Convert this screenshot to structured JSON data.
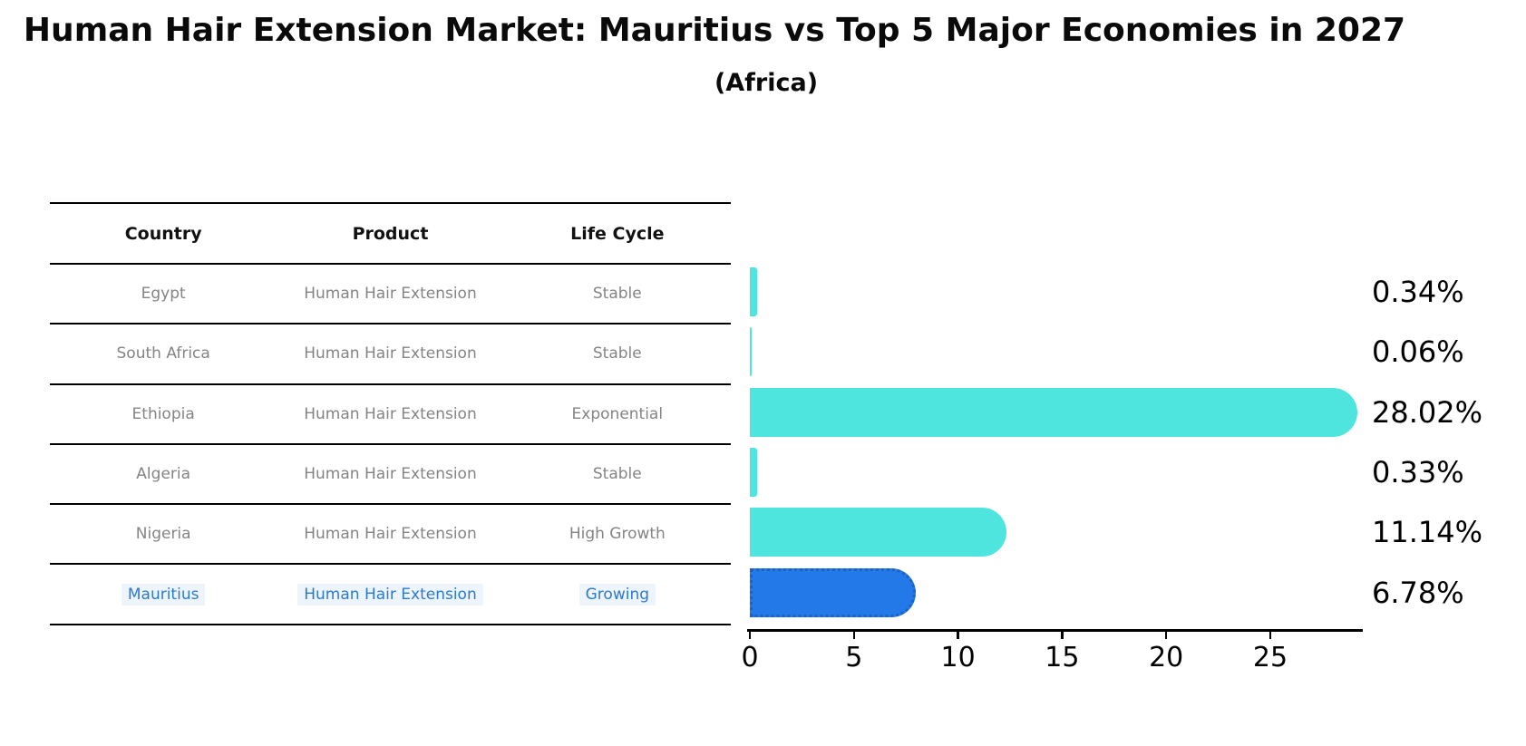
{
  "page": {
    "title": "Human Hair Extension Market: Mauritius vs Top 5 Major Economies in 2027",
    "subtitle": "(Africa)"
  },
  "table": {
    "headers": [
      "Country",
      "Product",
      "Life Cycle"
    ]
  },
  "rows": [
    {
      "country": "Egypt",
      "product": "Human Hair Extension",
      "life_cycle": "Stable",
      "value": 0.34,
      "value_label": "0.34%",
      "highlight": false
    },
    {
      "country": "South Africa",
      "product": "Human Hair Extension",
      "life_cycle": "Stable",
      "value": 0.06,
      "value_label": "0.06%",
      "highlight": false
    },
    {
      "country": "Ethiopia",
      "product": "Human Hair Extension",
      "life_cycle": "Exponential",
      "value": 28.02,
      "value_label": "28.02%",
      "highlight": false
    },
    {
      "country": "Algeria",
      "product": "Human Hair Extension",
      "life_cycle": "Stable",
      "value": 0.33,
      "value_label": "0.33%",
      "highlight": false
    },
    {
      "country": "Nigeria",
      "product": "Human Hair Extension",
      "life_cycle": "High Growth",
      "value": 11.14,
      "value_label": "11.14%",
      "highlight": false
    },
    {
      "country": "Mauritius",
      "product": "Human Hair Extension",
      "life_cycle": "Growing",
      "value": 6.78,
      "value_label": "6.78%",
      "highlight": true
    }
  ],
  "chart_data": {
    "type": "bar",
    "orientation": "horizontal",
    "title": "Human Hair Extension Market: Mauritius vs Top 5 Major Economies in 2027 (Africa)",
    "categories": [
      "Egypt",
      "South Africa",
      "Ethiopia",
      "Algeria",
      "Nigeria",
      "Mauritius"
    ],
    "values": [
      0.34,
      0.06,
      28.02,
      0.33,
      11.14,
      6.78
    ],
    "data_labels": [
      "0.34%",
      "0.06%",
      "28.02%",
      "0.33%",
      "11.14%",
      "6.78%"
    ],
    "xlabel": "",
    "ylabel": "",
    "xticks": [
      0,
      5,
      10,
      15,
      20,
      25
    ],
    "xlim": [
      0,
      29.4
    ],
    "grid": false,
    "legend": false,
    "highlight_category": "Mauritius"
  },
  "colors": {
    "bar_default": "#4DE5DE",
    "bar_highlight": "#2379E8",
    "bar_highlight_border": "#1a61c9",
    "highlight_text": "#2b7ad2",
    "highlight_bg": "#edf4fc",
    "cell_text": "#848484",
    "header_text": "#111111",
    "value_label_text": "#000000",
    "axis": "#000000"
  }
}
